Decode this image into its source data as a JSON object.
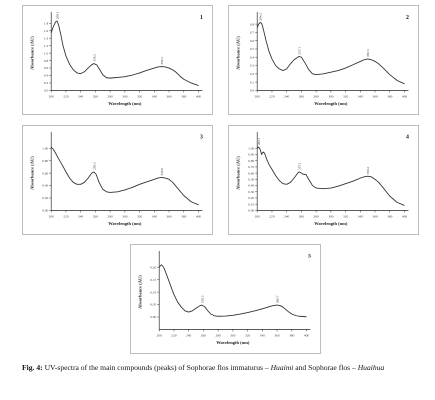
{
  "caption": {
    "label": "Fig. 4:",
    "text_1": " UV-spectra of the main compounds (peaks) of Sophorae flos immaturus – ",
    "italic_1": "Huaimi",
    "text_2": " and Sophorae flos – ",
    "italic_2": "Huaihua"
  },
  "chart_data": [
    {
      "type": "line",
      "panel_number": "1",
      "xlabel": "Wavelength (nm)",
      "ylabel": "Absorbance (AU)",
      "xlim": [
        200,
        400
      ],
      "ylim": [
        0.0,
        2.0
      ],
      "x_ticks": [
        "200",
        "220",
        "240",
        "260",
        "280",
        "300",
        "320",
        "340",
        "360",
        "380",
        "400"
      ],
      "y_ticks": [
        "0.0",
        "0.2",
        "0.4",
        "0.6",
        "0.8",
        "1.0",
        "1.2",
        "1.4",
        "1.6",
        "1.8"
      ],
      "x": [
        200,
        203,
        206,
        208,
        210,
        213,
        216,
        220,
        225,
        230,
        235,
        240,
        245,
        250,
        255,
        258,
        262,
        266,
        270,
        275,
        280,
        285,
        290,
        300,
        310,
        320,
        330,
        340,
        345,
        350,
        355,
        360,
        365,
        370,
        375,
        380,
        390,
        400
      ],
      "y": [
        1.55,
        1.72,
        1.84,
        1.86,
        1.75,
        1.5,
        1.2,
        0.92,
        0.7,
        0.55,
        0.47,
        0.45,
        0.5,
        0.6,
        0.69,
        0.72,
        0.68,
        0.55,
        0.42,
        0.34,
        0.33,
        0.34,
        0.35,
        0.37,
        0.41,
        0.47,
        0.54,
        0.6,
        0.63,
        0.64,
        0.63,
        0.6,
        0.55,
        0.48,
        0.38,
        0.3,
        0.2,
        0.13
      ],
      "peaks": [
        {
          "x": 208,
          "y": 1.86,
          "label": "208.1"
        },
        {
          "x": 258,
          "y": 0.72,
          "label": "258.2"
        },
        {
          "x": 350,
          "y": 0.64,
          "label": "350.2"
        }
      ]
    },
    {
      "type": "line",
      "panel_number": "2",
      "xlabel": "Wavelength (nm)",
      "ylabel": "Absorbance (AU)",
      "xlim": [
        200,
        400
      ],
      "ylim": [
        0.0,
        0.9
      ],
      "x_ticks": [
        "200",
        "220",
        "240",
        "260",
        "280",
        "300",
        "320",
        "340",
        "360",
        "380",
        "400"
      ],
      "y_ticks": [
        "0.0",
        "0.1",
        "0.2",
        "0.3",
        "0.4",
        "0.5",
        "0.6",
        "0.7",
        "0.8"
      ],
      "x": [
        200,
        202,
        204,
        206,
        208,
        212,
        216,
        220,
        225,
        230,
        235,
        240,
        245,
        250,
        255,
        257,
        260,
        265,
        270,
        275,
        280,
        290,
        300,
        310,
        320,
        330,
        340,
        345,
        350,
        355,
        360,
        365,
        370,
        380,
        390,
        400
      ],
      "y": [
        0.76,
        0.8,
        0.82,
        0.81,
        0.75,
        0.6,
        0.47,
        0.38,
        0.3,
        0.26,
        0.24,
        0.26,
        0.32,
        0.37,
        0.4,
        0.41,
        0.4,
        0.33,
        0.25,
        0.2,
        0.19,
        0.2,
        0.22,
        0.24,
        0.27,
        0.31,
        0.35,
        0.37,
        0.38,
        0.37,
        0.35,
        0.32,
        0.28,
        0.19,
        0.12,
        0.08
      ],
      "peaks": [
        {
          "x": 204,
          "y": 0.82,
          "label": "204.2"
        },
        {
          "x": 257,
          "y": 0.41,
          "label": "257.1"
        },
        {
          "x": 350,
          "y": 0.38,
          "label": "350.3"
        }
      ]
    },
    {
      "type": "line",
      "panel_number": "3",
      "xlabel": "Wavelength (nm)",
      "ylabel": "Absorbance (AU)",
      "xlim": [
        200,
        400
      ],
      "ylim": [
        0.0,
        1.2
      ],
      "x_ticks": [
        "200",
        "220",
        "240",
        "260",
        "280",
        "300",
        "320",
        "340",
        "360",
        "380",
        "400"
      ],
      "y_ticks": [
        "0.00",
        "0.20",
        "0.40",
        "0.60",
        "0.80",
        "1.00"
      ],
      "x": [
        200,
        203,
        206,
        210,
        215,
        220,
        225,
        230,
        235,
        240,
        245,
        250,
        255,
        258,
        261,
        265,
        270,
        275,
        280,
        290,
        300,
        310,
        320,
        330,
        340,
        345,
        350,
        355,
        360,
        365,
        370,
        380,
        390,
        400
      ],
      "y": [
        1.02,
        0.98,
        0.92,
        0.83,
        0.73,
        0.62,
        0.52,
        0.45,
        0.42,
        0.42,
        0.45,
        0.52,
        0.6,
        0.62,
        0.58,
        0.45,
        0.34,
        0.3,
        0.29,
        0.3,
        0.33,
        0.37,
        0.42,
        0.46,
        0.5,
        0.52,
        0.53,
        0.52,
        0.5,
        0.45,
        0.38,
        0.24,
        0.14,
        0.09
      ],
      "peaks": [
        {
          "x": 258,
          "y": 0.62,
          "label": "258.3"
        },
        {
          "x": 350,
          "y": 0.53,
          "label": "350.0"
        }
      ]
    },
    {
      "type": "line",
      "panel_number": "4",
      "xlabel": "Wavelength (nm)",
      "ylabel": "Absorbance (AU)",
      "xlim": [
        200,
        400
      ],
      "ylim": [
        0.0,
        1.2
      ],
      "x_ticks": [
        "200",
        "220",
        "240",
        "260",
        "280",
        "300",
        "320",
        "340",
        "360",
        "380",
        "400"
      ],
      "y_ticks": [
        "0.00",
        "0.10",
        "0.20",
        "0.30",
        "0.40",
        "0.50",
        "0.60",
        "0.70",
        "0.80",
        "0.90",
        "1.00"
      ],
      "x": [
        200,
        202,
        204,
        206,
        208,
        210,
        213,
        216,
        220,
        225,
        230,
        235,
        240,
        245,
        250,
        255,
        257,
        260,
        263,
        266,
        270,
        275,
        280,
        290,
        300,
        310,
        320,
        330,
        340,
        345,
        350,
        355,
        360,
        365,
        370,
        380,
        390,
        400
      ],
      "y": [
        1.0,
        1.02,
        0.98,
        0.9,
        0.94,
        0.92,
        0.82,
        0.74,
        0.66,
        0.56,
        0.48,
        0.43,
        0.42,
        0.45,
        0.52,
        0.6,
        0.62,
        0.6,
        0.58,
        0.58,
        0.5,
        0.4,
        0.36,
        0.35,
        0.36,
        0.39,
        0.43,
        0.47,
        0.52,
        0.54,
        0.55,
        0.54,
        0.5,
        0.45,
        0.38,
        0.23,
        0.13,
        0.08
      ],
      "peaks": [
        {
          "x": 202,
          "y": 1.02,
          "label": "202.1"
        },
        {
          "x": 257,
          "y": 0.62,
          "label": "257.1"
        },
        {
          "x": 350,
          "y": 0.55,
          "label": "350.2"
        }
      ]
    },
    {
      "type": "line",
      "panel_number": "5",
      "xlabel": "Wavelength (nm)",
      "ylabel": "Absorbance (AU)",
      "xlim": [
        200,
        400
      ],
      "ylim": [
        -0.05,
        0.25
      ],
      "x_ticks": [
        "200",
        "220",
        "240",
        "260",
        "280",
        "300",
        "320",
        "340",
        "360",
        "380",
        "400"
      ],
      "y_ticks": [
        "0.00",
        "0.05",
        "0.10",
        "0.15",
        "0.20"
      ],
      "x": [
        200,
        203,
        206,
        210,
        215,
        220,
        225,
        230,
        235,
        240,
        245,
        250,
        255,
        258,
        262,
        266,
        270,
        275,
        280,
        290,
        300,
        310,
        320,
        330,
        340,
        350,
        355,
        360,
        364,
        368,
        372,
        376,
        380,
        385,
        390,
        400
      ],
      "y": [
        0.2,
        0.21,
        0.2,
        0.17,
        0.13,
        0.09,
        0.06,
        0.04,
        0.025,
        0.02,
        0.025,
        0.035,
        0.045,
        0.048,
        0.04,
        0.025,
        0.012,
        0.005,
        0.003,
        0.004,
        0.007,
        0.012,
        0.018,
        0.025,
        0.033,
        0.042,
        0.046,
        0.048,
        0.046,
        0.04,
        0.03,
        0.02,
        0.012,
        0.006,
        0.003,
        0.001
      ],
      "peaks": [
        {
          "x": 258,
          "y": 0.048,
          "label": "258.3"
        },
        {
          "x": 360,
          "y": 0.048,
          "label": "360.7"
        }
      ]
    }
  ]
}
